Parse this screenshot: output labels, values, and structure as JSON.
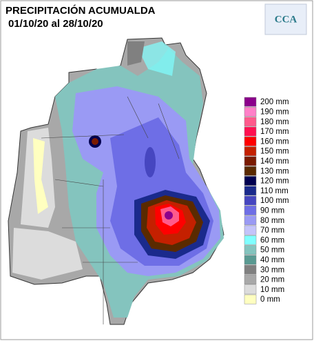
{
  "header": {
    "title": "PRECIPITACIÓN ACUMUALDA",
    "period": "01/10/20 al 28/10/20",
    "logo": "CCA"
  },
  "legend": {
    "items": [
      {
        "label": "200 mm",
        "color": "#8b008b"
      },
      {
        "label": "190 mm",
        "color": "#ff80c8"
      },
      {
        "label": "180 mm",
        "color": "#ff5a8c"
      },
      {
        "label": "170 mm",
        "color": "#ff1050"
      },
      {
        "label": "160 mm",
        "color": "#ff0000"
      },
      {
        "label": "150 mm",
        "color": "#c42000"
      },
      {
        "label": "140 mm",
        "color": "#7a1a00"
      },
      {
        "label": "130 mm",
        "color": "#5a2a00"
      },
      {
        "label": "120 mm",
        "color": "#000050"
      },
      {
        "label": "110 mm",
        "color": "#1a2a8c"
      },
      {
        "label": "100 mm",
        "color": "#4646c0"
      },
      {
        "label": "90 mm",
        "color": "#6e6ee6"
      },
      {
        "label": "80 mm",
        "color": "#9a9af4"
      },
      {
        "label": "70 mm",
        "color": "#c4c4fa"
      },
      {
        "label": "60 mm",
        "color": "#80ffff"
      },
      {
        "label": "50 mm",
        "color": "#84c4be"
      },
      {
        "label": "40 mm",
        "color": "#5a9a92"
      },
      {
        "label": "30 mm",
        "color": "#808080"
      },
      {
        "label": "20 mm",
        "color": "#a8a8a8"
      },
      {
        "label": "10 mm",
        "color": "#dcdcdc"
      },
      {
        "label": "0 mm",
        "color": "#ffffc0"
      }
    ]
  }
}
